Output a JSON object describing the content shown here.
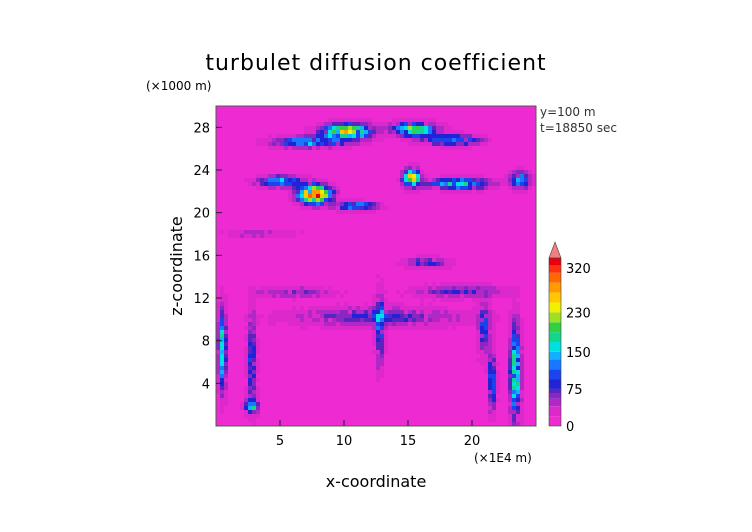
{
  "chart_data": {
    "type": "heatmap",
    "title": "turbulet diffusion coefficient",
    "xlabel": "x-coordinate",
    "ylabel": "z-coordinate",
    "x_unit": "(×1E4 m)",
    "y_unit": "(×1000 m)",
    "annotations": [
      "y=100  m",
      "t=18850  sec"
    ],
    "xlim": [
      0,
      25
    ],
    "ylim": [
      0,
      30
    ],
    "x_ticks": [
      5,
      10,
      15,
      20
    ],
    "y_ticks": [
      4,
      8,
      12,
      16,
      20,
      24,
      28
    ],
    "colorbar": {
      "tick_values": [
        0,
        75,
        150,
        230,
        320
      ],
      "tick_labels": [
        "0",
        "75",
        "150",
        "230",
        "320"
      ],
      "range": [
        0,
        340
      ],
      "levels": [
        {
          "value": 0,
          "color": "#ee2ad2"
        },
        {
          "value": 20,
          "color": "#dd28cc"
        },
        {
          "value": 40,
          "color": "#b228c6"
        },
        {
          "value": 55,
          "color": "#8a26c2"
        },
        {
          "value": 65,
          "color": "#5a24c0"
        },
        {
          "value": 75,
          "color": "#2222d6"
        },
        {
          "value": 95,
          "color": "#1a44ee"
        },
        {
          "value": 115,
          "color": "#1878ff"
        },
        {
          "value": 135,
          "color": "#12b0ff"
        },
        {
          "value": 150,
          "color": "#00e0e0"
        },
        {
          "value": 170,
          "color": "#14d68a"
        },
        {
          "value": 190,
          "color": "#30d040"
        },
        {
          "value": 210,
          "color": "#a0e020"
        },
        {
          "value": 230,
          "color": "#f2f000"
        },
        {
          "value": 250,
          "color": "#ffc800"
        },
        {
          "value": 270,
          "color": "#ff9a00"
        },
        {
          "value": 290,
          "color": "#ff6a00"
        },
        {
          "value": 310,
          "color": "#ff3010"
        },
        {
          "value": 325,
          "color": "#e80010"
        },
        {
          "value": 340,
          "color": "#f08080"
        }
      ]
    },
    "background_value": 10,
    "features": [
      {
        "x": 10.2,
        "z": 27.6,
        "sx": 1.8,
        "sz": 0.7,
        "peak": 230
      },
      {
        "x": 15.5,
        "z": 27.8,
        "sx": 1.6,
        "sz": 0.6,
        "peak": 200
      },
      {
        "x": 7.2,
        "z": 26.6,
        "sx": 2.6,
        "sz": 0.5,
        "peak": 140
      },
      {
        "x": 18.5,
        "z": 26.8,
        "sx": 2.2,
        "sz": 0.5,
        "peak": 120
      },
      {
        "x": 7.7,
        "z": 21.7,
        "sx": 1.2,
        "sz": 0.8,
        "peak": 315
      },
      {
        "x": 5.0,
        "z": 22.9,
        "sx": 1.6,
        "sz": 0.5,
        "peak": 150
      },
      {
        "x": 15.3,
        "z": 23.2,
        "sx": 0.6,
        "sz": 0.8,
        "peak": 250
      },
      {
        "x": 19.0,
        "z": 22.7,
        "sx": 2.2,
        "sz": 0.5,
        "peak": 170
      },
      {
        "x": 11.0,
        "z": 20.6,
        "sx": 1.6,
        "sz": 0.4,
        "peak": 130
      },
      {
        "x": 23.8,
        "z": 23.0,
        "sx": 0.7,
        "sz": 0.8,
        "peak": 140
      },
      {
        "x": 0.5,
        "z": 7.0,
        "sx": 0.3,
        "sz": 3.5,
        "peak": 170
      },
      {
        "x": 2.8,
        "z": 6.0,
        "sx": 0.35,
        "sz": 4.0,
        "peak": 90
      },
      {
        "x": 23.4,
        "z": 5.0,
        "sx": 0.4,
        "sz": 4.0,
        "peak": 190
      },
      {
        "x": 21.6,
        "z": 4.0,
        "sx": 0.3,
        "sz": 2.5,
        "peak": 120
      },
      {
        "x": 12.8,
        "z": 9.0,
        "sx": 0.35,
        "sz": 3.5,
        "peak": 90
      },
      {
        "x": 12.5,
        "z": 10.2,
        "sx": 6.5,
        "sz": 0.9,
        "peak": 70
      },
      {
        "x": 19.0,
        "z": 12.6,
        "sx": 3.5,
        "sz": 0.6,
        "peak": 65
      },
      {
        "x": 6.0,
        "z": 12.5,
        "sx": 3.0,
        "sz": 0.5,
        "peak": 55
      },
      {
        "x": 16.5,
        "z": 15.3,
        "sx": 1.8,
        "sz": 0.5,
        "peak": 70
      },
      {
        "x": 3.5,
        "z": 18.0,
        "sx": 2.5,
        "sz": 0.4,
        "peak": 45
      },
      {
        "x": 2.8,
        "z": 1.8,
        "sx": 0.5,
        "sz": 0.6,
        "peak": 150
      },
      {
        "x": 21.0,
        "z": 9.0,
        "sx": 0.5,
        "sz": 2.5,
        "peak": 80
      }
    ]
  }
}
